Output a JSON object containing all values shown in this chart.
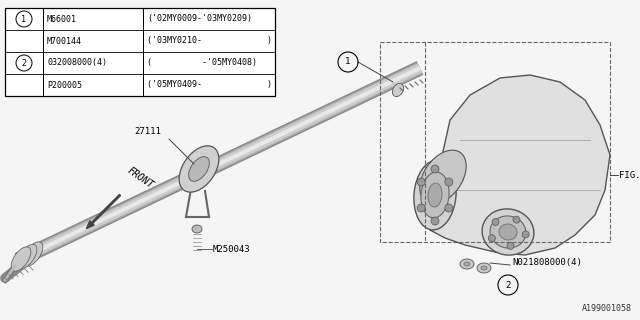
{
  "bg_color": "#f5f5f5",
  "table_rows": [
    {
      "circle": "1",
      "part": "M66001",
      "note": "('02MY0009-'03MY0209)"
    },
    {
      "circle": "",
      "part": "M700144",
      "note": "('03MY0210-             )"
    },
    {
      "circle": "2",
      "part": "032008000(4)",
      "note": "(          -'05MY0408)"
    },
    {
      "circle": "",
      "part": "P200005",
      "note": "('05MY0409-             )"
    }
  ],
  "font_size": 6.5,
  "diagram_ref": "A199001058"
}
